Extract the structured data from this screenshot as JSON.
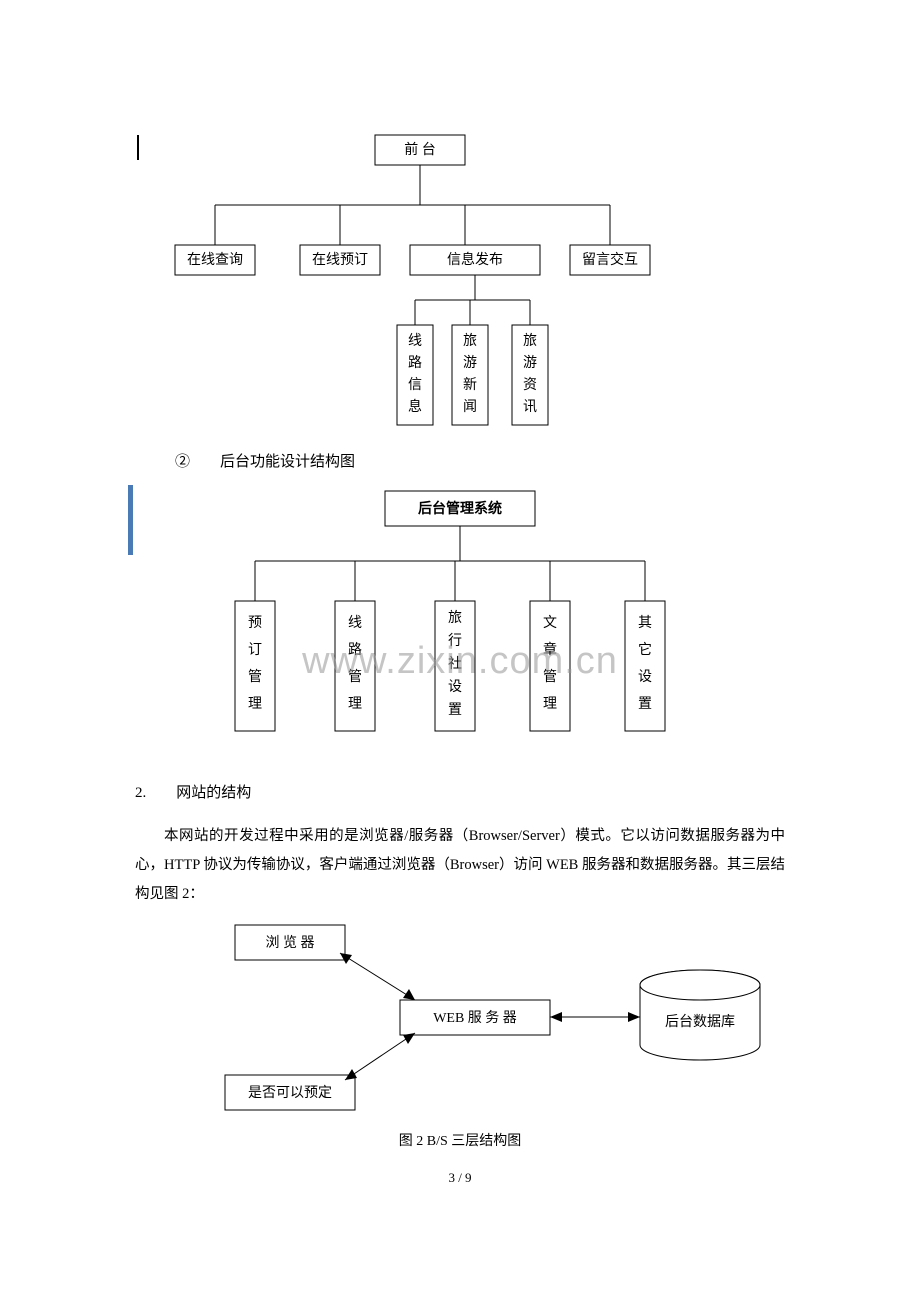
{
  "watermark_text": "www.zixin.com.cn",
  "diagram1": {
    "type": "tree",
    "root": "前 台",
    "level2": [
      "在线查询",
      "在线预订",
      "信息发布",
      "留言交互"
    ],
    "level3_parent_index": 2,
    "level3": [
      "线路信息",
      "旅游新闻",
      "旅游资讯"
    ],
    "box_stroke": "#000000",
    "box_fill": "#ffffff",
    "font_size": 14
  },
  "heading_2": "②　　后台功能设计结构图",
  "diagram2": {
    "type": "tree",
    "root": "后台管理系统",
    "children": [
      "预订管理",
      "线路管理",
      "旅行社设置",
      "文章管理",
      "其它设置"
    ],
    "box_stroke": "#000000",
    "box_fill": "#ffffff",
    "font_size": 14
  },
  "section2_num": "2.　　网站的结构",
  "para1": "本网站的开发过程中采用的是浏览器/服务器（Browser/Server）模式。它以访问数据服务器为中心，HTTP 协议为传输协议，客户端通过浏览器（Browser）访问 WEB 服务器和数据服务器。其三层结构见图 2：",
  "diagram3": {
    "type": "network",
    "nodes": {
      "browser": "浏 览 器",
      "web": "WEB 服 务 器",
      "bookable": "是否可以预定",
      "db": "后台数据库"
    },
    "box_stroke": "#000000",
    "arrow_fill": "#000000"
  },
  "caption": "图 2 B/S 三层结构图",
  "page_number": "3 / 9"
}
